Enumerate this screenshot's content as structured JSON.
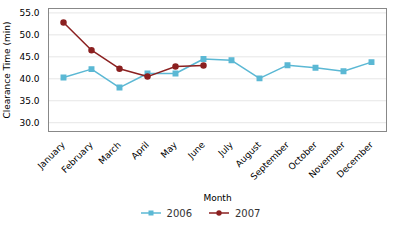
{
  "chart_data": {
    "type": "line",
    "categories": [
      "January",
      "February",
      "March",
      "April",
      "May",
      "June",
      "July",
      "August",
      "September",
      "October",
      "November",
      "December"
    ],
    "series": [
      {
        "name": "2006",
        "color": "#5bb8d4",
        "marker": "square",
        "values": [
          40.3,
          42.2,
          38.0,
          41.2,
          41.2,
          44.5,
          44.2,
          40.1,
          43.1,
          42.5,
          41.7,
          43.8
        ]
      },
      {
        "name": "2007",
        "color": "#8b2020",
        "marker": "circle",
        "values": [
          52.8,
          46.5,
          42.3,
          40.5,
          42.8,
          43.0,
          null,
          null,
          null,
          null,
          null,
          null
        ]
      }
    ],
    "xlabel": "Month",
    "ylabel": "Clearance Time (min)",
    "ylim": [
      28.0,
      56.0
    ],
    "yticks": [
      {
        "value": 30,
        "label": "30.0"
      },
      {
        "value": 35,
        "label": "35.0"
      },
      {
        "value": 40,
        "label": "40.0"
      },
      {
        "value": 45,
        "label": "45.0"
      },
      {
        "value": 50,
        "label": "50.0"
      },
      {
        "value": 55,
        "label": "55.0"
      }
    ],
    "grid": true,
    "legend": "bottom"
  }
}
